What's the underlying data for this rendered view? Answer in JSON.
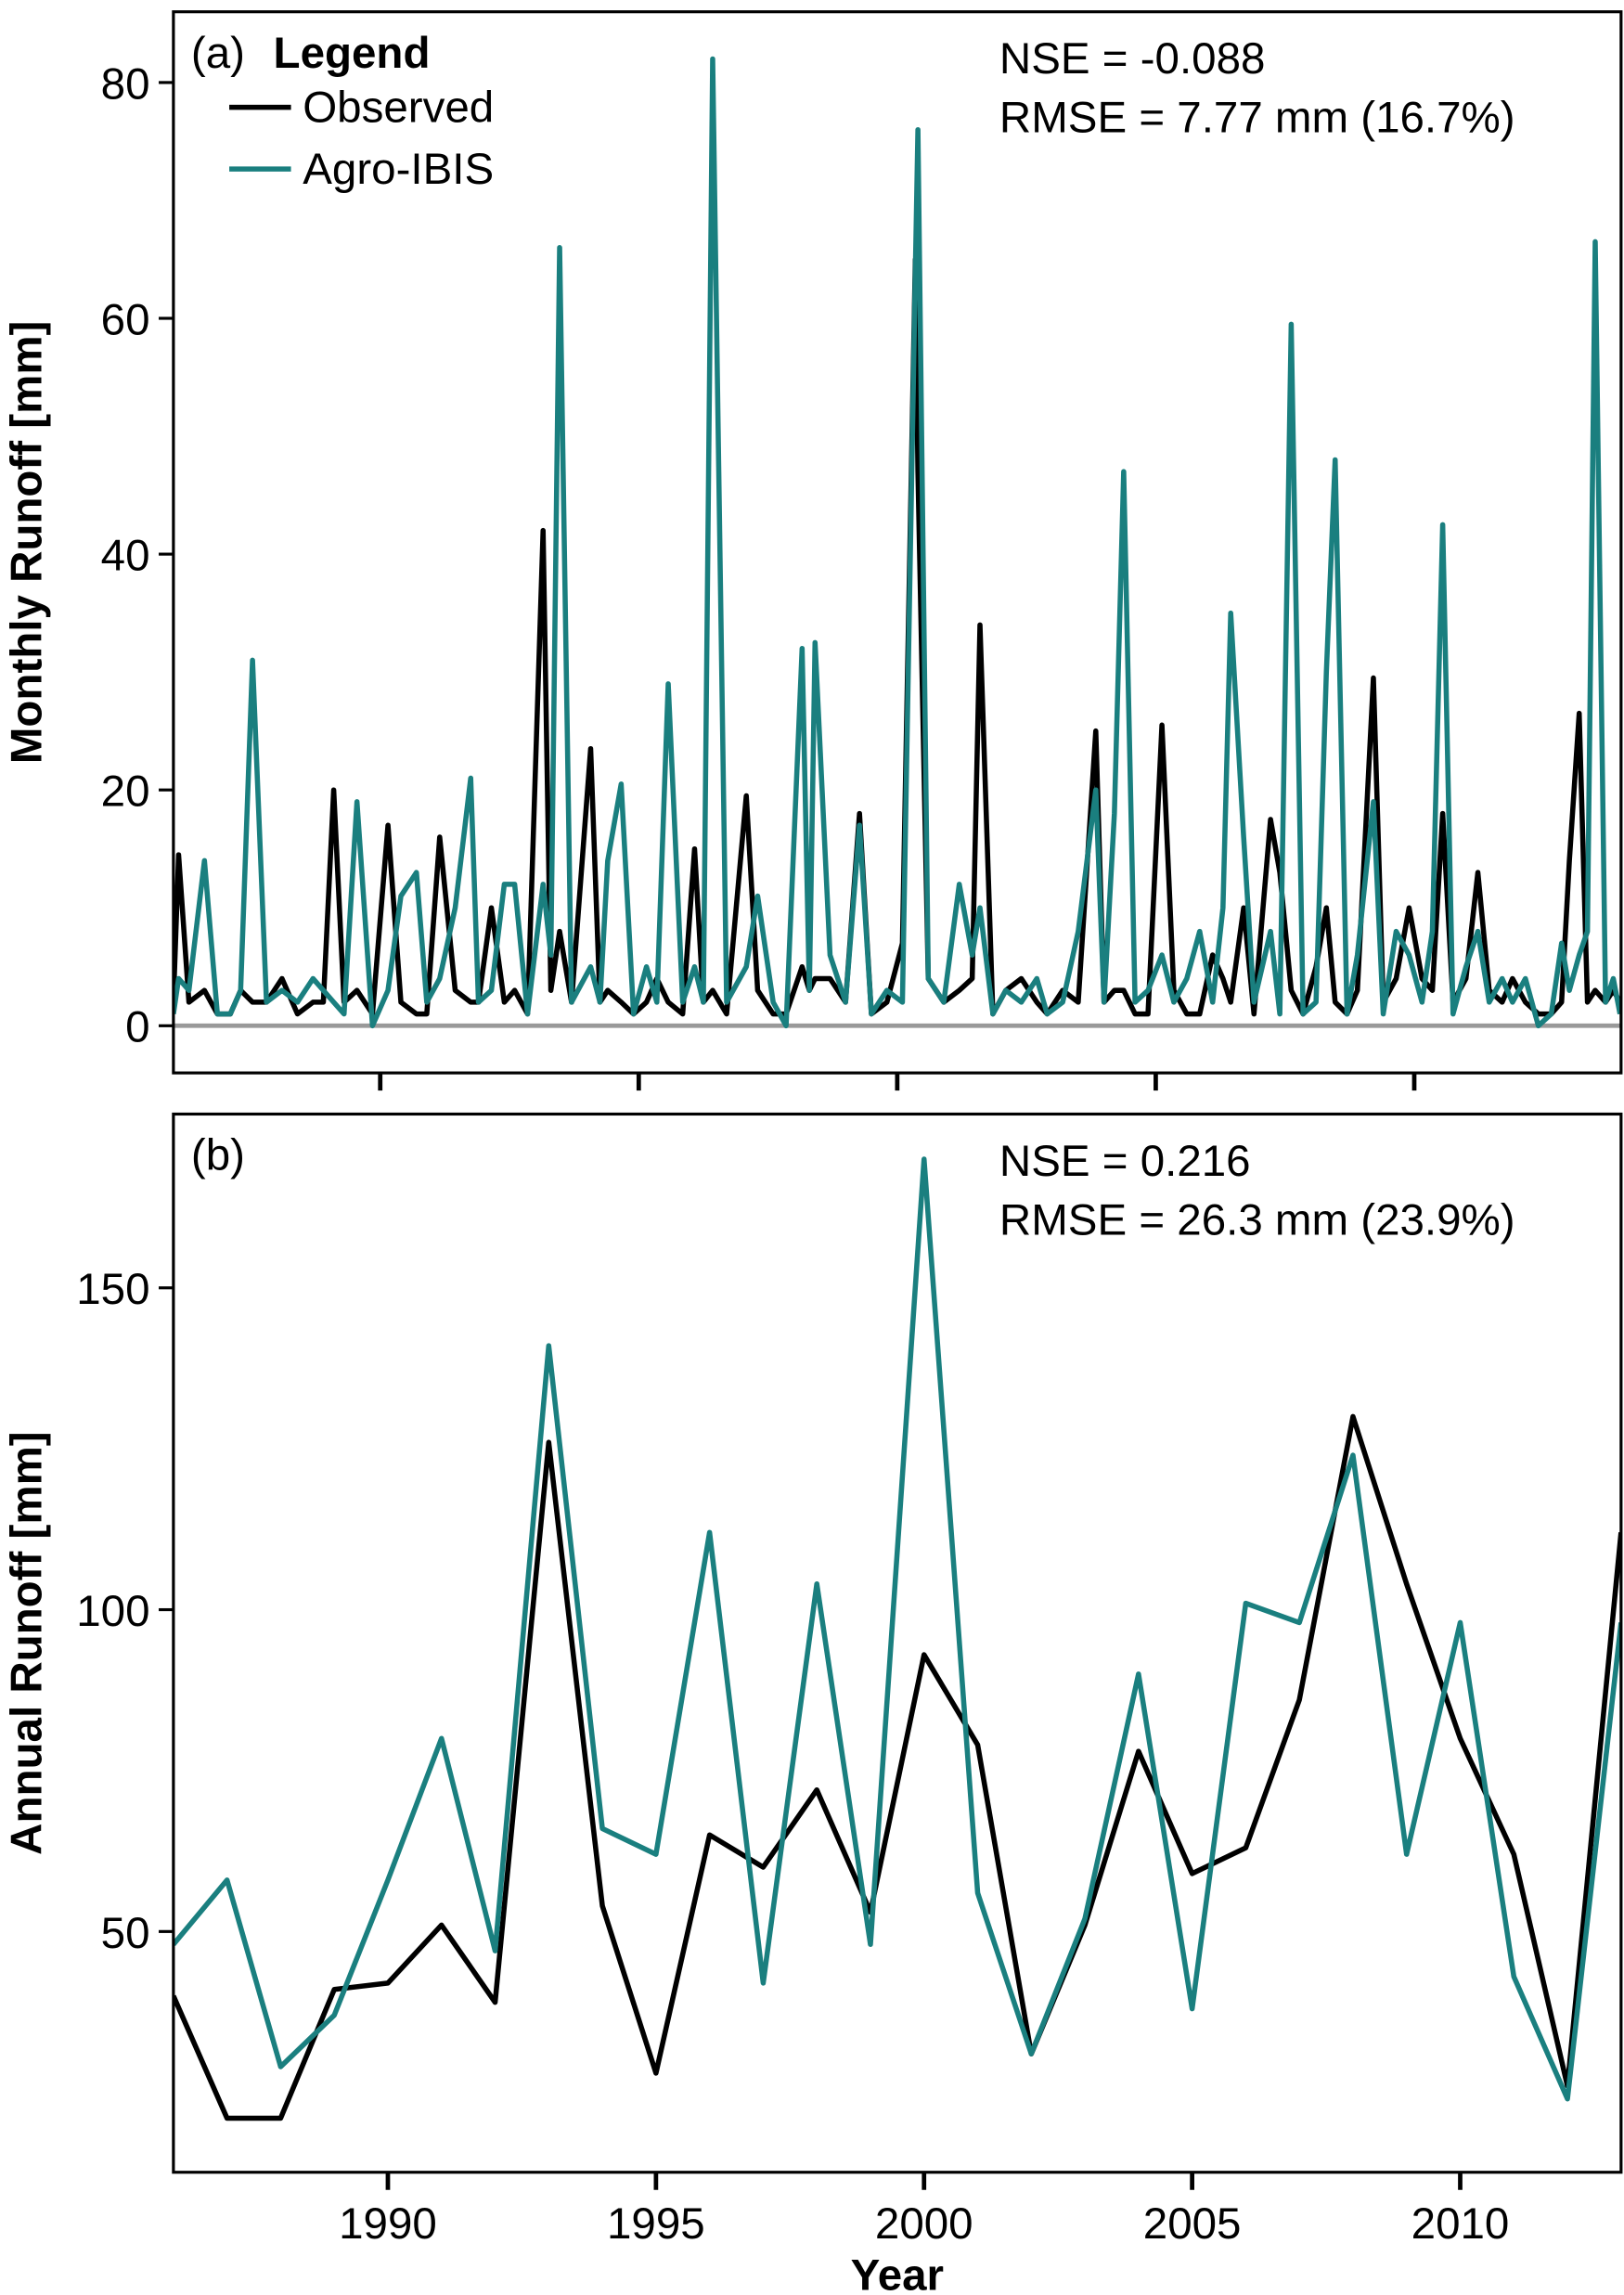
{
  "chart_data": [
    {
      "type": "line",
      "panel_label": "(a)",
      "legend_title": "Legend",
      "legend": "top-left",
      "ylabel": "Monthly Runoff [mm]",
      "annotations": [
        "NSE = -0.088",
        "RMSE = 7.77 mm (16.7%)"
      ],
      "xlim": [
        1986,
        2014
      ],
      "xticks": [
        1990,
        1995,
        2000,
        2005,
        2010
      ],
      "ylim": [
        -4,
        86
      ],
      "yticks": [
        0,
        20,
        40,
        60,
        80
      ],
      "reference_line": 0,
      "x": [
        1986.0,
        1986.1,
        1986.3,
        1986.6,
        1986.85,
        1987.1,
        1987.3,
        1987.53,
        1987.8,
        1988.1,
        1988.4,
        1988.7,
        1988.9,
        1989.1,
        1989.3,
        1989.55,
        1989.85,
        1990.15,
        1990.4,
        1990.7,
        1990.9,
        1991.15,
        1991.45,
        1991.75,
        1991.9,
        1992.15,
        1992.4,
        1992.6,
        1992.85,
        1993.15,
        1993.3,
        1993.47,
        1993.7,
        1994.07,
        1994.25,
        1994.4,
        1994.66,
        1994.9,
        1995.15,
        1995.35,
        1995.57,
        1995.85,
        1996.08,
        1996.25,
        1996.43,
        1996.7,
        1997.08,
        1997.3,
        1997.6,
        1997.85,
        1998.16,
        1998.3,
        1998.41,
        1998.7,
        1999.0,
        1999.27,
        1999.5,
        1999.8,
        2000.1,
        2000.35,
        2000.4,
        2000.6,
        2000.9,
        2001.2,
        2001.45,
        2001.6,
        2001.85,
        2002.1,
        2002.4,
        2002.7,
        2002.9,
        2003.2,
        2003.5,
        2003.84,
        2004.0,
        2004.2,
        2004.38,
        2004.6,
        2004.85,
        2005.12,
        2005.35,
        2005.6,
        2005.85,
        2006.1,
        2006.3,
        2006.45,
        2006.7,
        2006.9,
        2007.22,
        2007.4,
        2007.62,
        2007.85,
        2008.1,
        2008.3,
        2008.47,
        2008.7,
        2008.9,
        2009.21,
        2009.4,
        2009.65,
        2009.9,
        2010.15,
        2010.35,
        2010.55,
        2010.75,
        2011.0,
        2011.23,
        2011.45,
        2011.7,
        2011.9,
        2012.15,
        2012.4,
        2012.65,
        2012.85,
        2013.0,
        2013.19,
        2013.35,
        2013.5,
        2013.7,
        2013.85,
        2013.98
      ],
      "series": [
        {
          "name": "Observed",
          "color": "#000000",
          "values": [
            2,
            14.5,
            2,
            3,
            1,
            1,
            3,
            2,
            2,
            4,
            1,
            2,
            2,
            20,
            2,
            3,
            1,
            17,
            2,
            1,
            1,
            16,
            3,
            2,
            2,
            10,
            2,
            3,
            1,
            42,
            3,
            8,
            2,
            23.5,
            2,
            3,
            2,
            1,
            2,
            4,
            2,
            1,
            15,
            2,
            3,
            1,
            19.5,
            3,
            1,
            1,
            5,
            3,
            4,
            4,
            2,
            18,
            1,
            2,
            7,
            65,
            47,
            4,
            2,
            3,
            4,
            34,
            1,
            3,
            4,
            2,
            1,
            3,
            2,
            25,
            2,
            3,
            3,
            1,
            1,
            25.5,
            3,
            1,
            1,
            6,
            4,
            2,
            10,
            1,
            17.5,
            13,
            3,
            1,
            5,
            10,
            2,
            1,
            3,
            29.5,
            2,
            4,
            10,
            4,
            3,
            18,
            2,
            4,
            13,
            3,
            2,
            4,
            2,
            1,
            1,
            2,
            14,
            26.5,
            2,
            3,
            2,
            3,
            2
          ]
        },
        {
          "name": "Agro-IBIS",
          "color": "#1a7f7f",
          "values": [
            1,
            4,
            3,
            14,
            1,
            1,
            3,
            31,
            2,
            3,
            2,
            4,
            3,
            2,
            1,
            19,
            0,
            3,
            11,
            13,
            2,
            4,
            10,
            21,
            2,
            3,
            12,
            12,
            1,
            12,
            6,
            66,
            2,
            5,
            2,
            14,
            20.5,
            1,
            5,
            2,
            29,
            2,
            5,
            2,
            82,
            2,
            5,
            11,
            2,
            0,
            32,
            3,
            32.5,
            6,
            2,
            17,
            1,
            3,
            2,
            64,
            76,
            4,
            2,
            12,
            6,
            10,
            1,
            3,
            2,
            4,
            1,
            2,
            8,
            20,
            2,
            18,
            47,
            2,
            3,
            6,
            2,
            4,
            8,
            2,
            10,
            35,
            16,
            2,
            8,
            1,
            59.5,
            1,
            2,
            30,
            48,
            1,
            6,
            19,
            1,
            8,
            6,
            2,
            8,
            42.5,
            1,
            5,
            8,
            2,
            4,
            2,
            4,
            0,
            1,
            7,
            3,
            6,
            8,
            66.5,
            2,
            4,
            1
          ]
        }
      ]
    },
    {
      "type": "line",
      "panel_label": "(b)",
      "xlabel": "Year",
      "ylabel": "Annual Runoff [mm]",
      "annotations": [
        "NSE = 0.216",
        "RMSE = 26.3 mm (23.9%)"
      ],
      "xlim": [
        1986,
        2013
      ],
      "xticks": [
        1990,
        1995,
        2000,
        2005,
        2010
      ],
      "ylim": [
        12.6,
        177
      ],
      "yticks": [
        50,
        100,
        150
      ],
      "x": [
        1986,
        1987,
        1988,
        1989,
        1990,
        1991,
        1992,
        1993,
        1994,
        1995,
        1996,
        1997,
        1998,
        1999,
        2000,
        2001,
        2002,
        2003,
        2004,
        2005,
        2006,
        2007,
        2008,
        2009,
        2010,
        2011,
        2012,
        2013
      ],
      "series": [
        {
          "name": "Observed",
          "color": "#000000",
          "values": [
            40,
            21,
            21,
            41,
            42,
            51,
            39,
            126,
            54,
            28,
            65,
            60,
            72,
            53,
            93,
            79,
            31,
            51,
            78,
            59,
            63,
            86,
            130,
            104,
            80,
            62,
            26,
            112
          ]
        },
        {
          "name": "Agro-IBIS",
          "color": "#1a7f7f",
          "values": [
            48,
            58,
            29,
            37,
            58,
            80,
            47,
            141,
            66,
            62,
            112,
            42,
            104,
            48,
            170,
            56,
            31,
            52,
            90,
            38,
            101,
            98,
            124,
            62,
            98,
            43,
            24,
            98
          ]
        }
      ]
    }
  ]
}
